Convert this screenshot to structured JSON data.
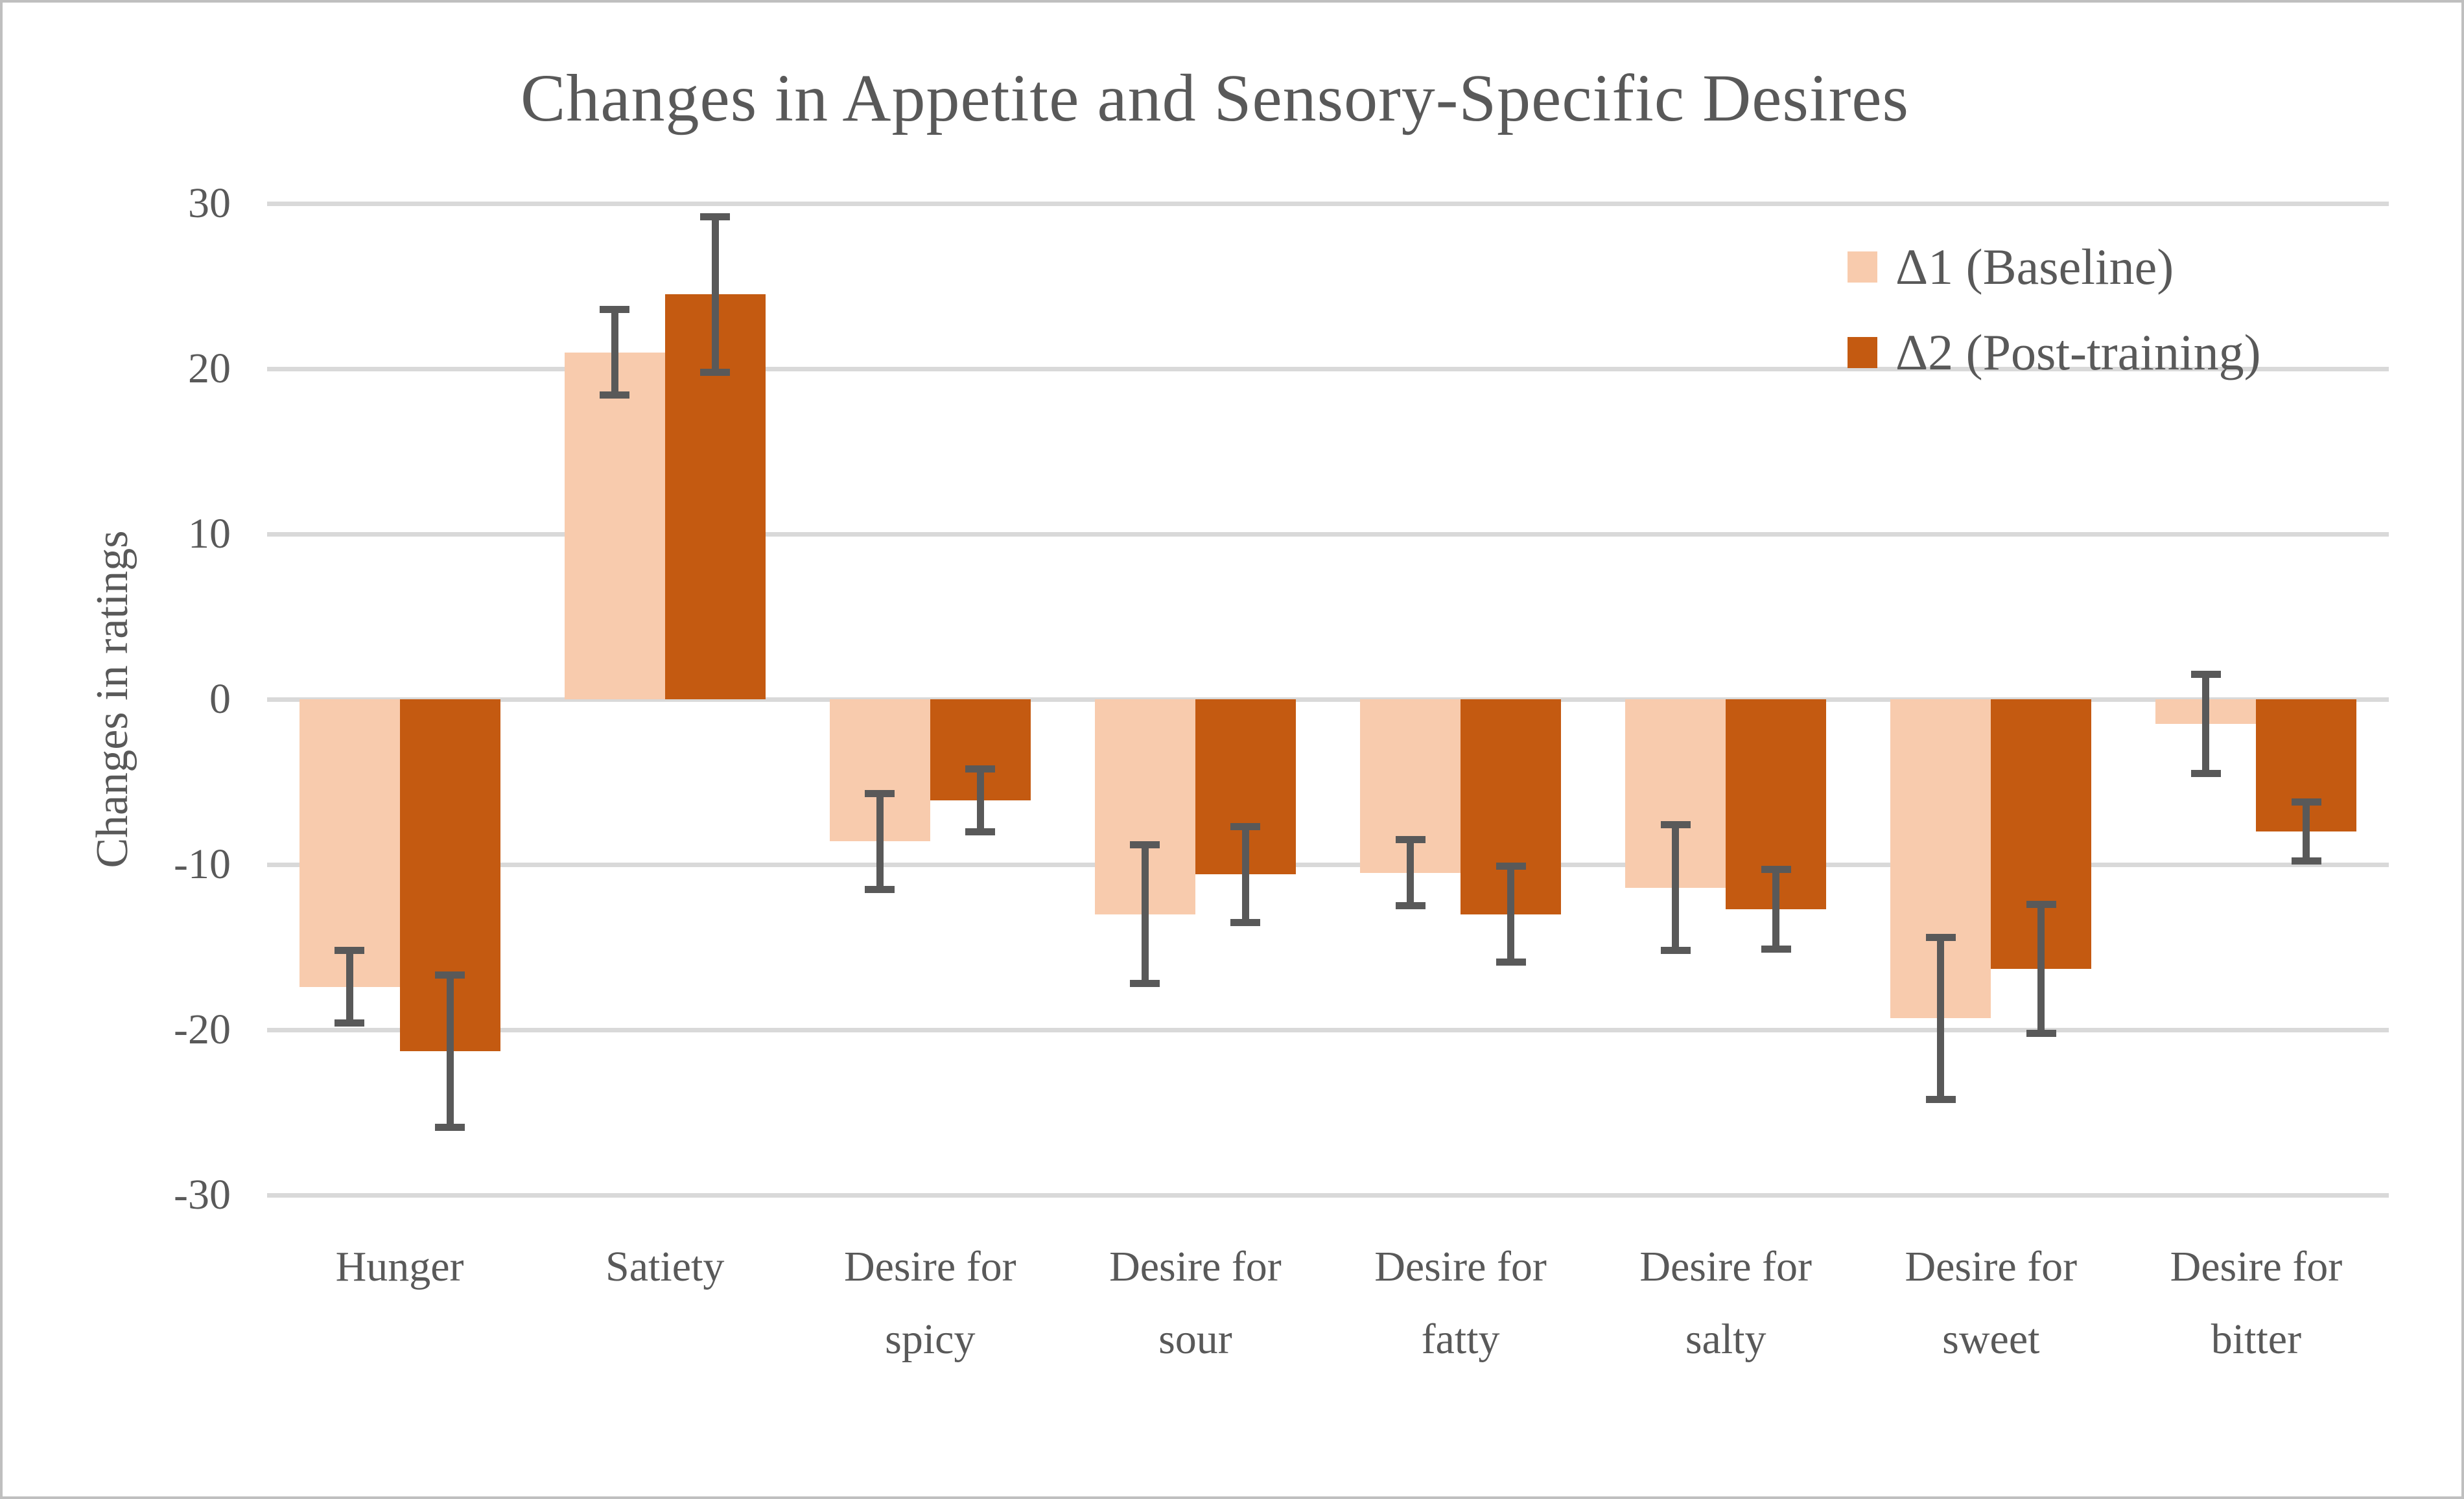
{
  "chart_data": {
    "type": "bar",
    "title": "Changes in Appetite and Sensory-Specific Desires",
    "ylabel": "Changes in ratings",
    "ylim": [
      -30,
      30
    ],
    "yticks": [
      30,
      20,
      10,
      0,
      -10,
      -20,
      -30
    ],
    "grid": "horizontal",
    "legend_position": "top-right",
    "categories": [
      "Hunger",
      "Satiety",
      "Desire for spicy",
      "Desire for sour",
      "Desire for fatty",
      "Desire for salty",
      "Desire for sweet",
      "Desire for bitter"
    ],
    "category_label_lines": [
      [
        "Hunger"
      ],
      [
        "Satiety"
      ],
      [
        "Desire for",
        "spicy"
      ],
      [
        "Desire for",
        "sour"
      ],
      [
        "Desire for",
        "fatty"
      ],
      [
        "Desire for",
        "salty"
      ],
      [
        "Desire for",
        "sweet"
      ],
      [
        "Desire for",
        "bitter"
      ]
    ],
    "series": [
      {
        "name": "Δ1 (Baseline)",
        "color": "#F8CBAD",
        "values": [
          -17.4,
          21.0,
          -8.6,
          -13.0,
          -10.5,
          -11.4,
          -19.3,
          -1.5
        ],
        "errors": [
          2.2,
          2.6,
          2.9,
          4.2,
          2.0,
          3.8,
          4.9,
          3.0
        ]
      },
      {
        "name": "Δ2 (Post-training)",
        "color": "#C45A11",
        "values": [
          -21.3,
          24.5,
          -6.1,
          -10.6,
          -13.0,
          -12.7,
          -16.3,
          -8.0
        ],
        "errors": [
          4.6,
          4.7,
          1.9,
          2.9,
          2.9,
          2.4,
          3.9,
          1.8
        ]
      }
    ],
    "error_bar_color": "#595959",
    "gridline_color": "#D9D9D9",
    "text_color": "#595959",
    "frame_border_color": "#BFBFBF"
  }
}
